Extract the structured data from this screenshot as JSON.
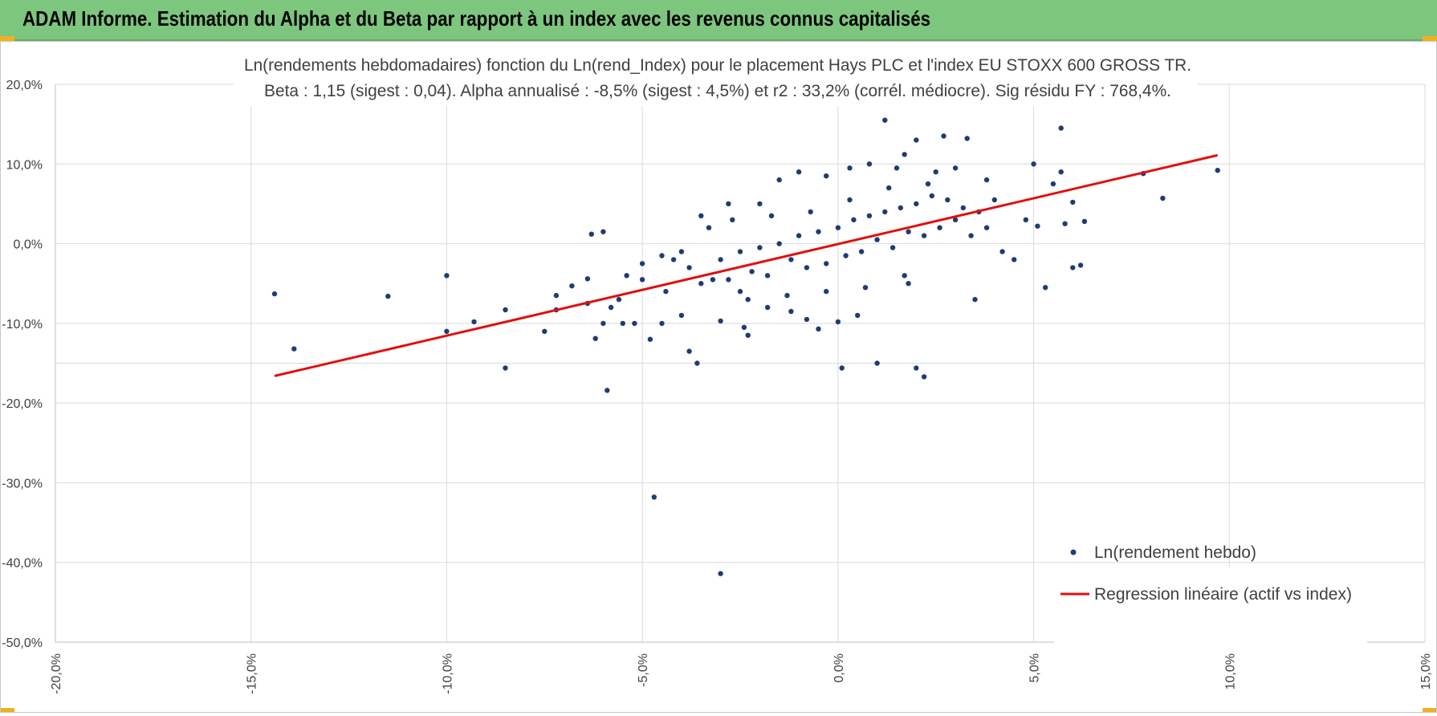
{
  "header": {
    "title": "ADAM Informe. Estimation du Alpha et du Beta par rapport à un index avec les revenus connus capitalisés"
  },
  "colors": {
    "header_bg": "#7dc67e",
    "accent": "#f2b01e",
    "points": "#1f3c72",
    "regression": "#e01010",
    "grid": "#d9d9d9"
  },
  "chart_data": {
    "type": "scatter",
    "title": "Ln(rendements hebdomadaires) fonction du Ln(rend_Index) pour le placement Hays PLC et l'index EU STOXX 600 GROSS TR.",
    "subtitle": "Beta : 1,15 (sigest : 0,04). Alpha annualisé : -8,5% (sigest : 4,5%) et r2 : 33,2% (corrél. médiocre). Sig résidu FY : 768,4%.",
    "xlabel": "",
    "ylabel": "",
    "xlim": [
      -0.2,
      0.15
    ],
    "ylim": [
      -0.5,
      0.2
    ],
    "x_ticks": [
      -0.2,
      -0.15,
      -0.1,
      -0.05,
      0.0,
      0.05,
      0.1,
      0.15
    ],
    "x_tick_labels": [
      "-20,0%",
      "-15,0%",
      "-10,0%",
      "-5,0%",
      "0,0%",
      "5,0%",
      "10,0%",
      "15,0%"
    ],
    "y_ticks": [
      0.2,
      0.1,
      0.0,
      -0.1,
      -0.2,
      -0.3,
      -0.4,
      -0.5
    ],
    "y_tick_labels": [
      "20,0%",
      "10,0%",
      "0,0%",
      "-10,0%",
      "-20,0%",
      "-30,0%",
      "-40,0%",
      "-50,0%"
    ],
    "grid": true,
    "legend_position": "bottom-right",
    "series": [
      {
        "name": "Ln(rendement hebdo)",
        "type": "scatter",
        "color": "#1f3c72",
        "points": [
          [
            -0.144,
            -0.063
          ],
          [
            -0.139,
            -0.132
          ],
          [
            -0.115,
            -0.066
          ],
          [
            -0.1,
            -0.04
          ],
          [
            -0.1,
            -0.11
          ],
          [
            -0.093,
            -0.098
          ],
          [
            -0.085,
            -0.083
          ],
          [
            -0.085,
            -0.156
          ],
          [
            -0.075,
            -0.11
          ],
          [
            -0.072,
            -0.083
          ],
          [
            -0.072,
            -0.065
          ],
          [
            -0.068,
            -0.053
          ],
          [
            -0.064,
            -0.044
          ],
          [
            -0.064,
            -0.075
          ],
          [
            -0.063,
            0.012
          ],
          [
            -0.062,
            -0.119
          ],
          [
            -0.06,
            0.015
          ],
          [
            -0.06,
            -0.1
          ],
          [
            -0.059,
            -0.184
          ],
          [
            -0.058,
            -0.08
          ],
          [
            -0.056,
            -0.07
          ],
          [
            -0.055,
            -0.1
          ],
          [
            -0.054,
            -0.04
          ],
          [
            -0.052,
            -0.1
          ],
          [
            -0.05,
            -0.025
          ],
          [
            -0.048,
            -0.12
          ],
          [
            -0.047,
            -0.318
          ],
          [
            -0.045,
            -0.1
          ],
          [
            -0.044,
            -0.06
          ],
          [
            -0.042,
            -0.02
          ],
          [
            -0.04,
            -0.09
          ],
          [
            -0.038,
            -0.135
          ],
          [
            -0.036,
            -0.15
          ],
          [
            -0.035,
            0.035
          ],
          [
            -0.032,
            -0.045
          ],
          [
            -0.03,
            -0.414
          ],
          [
            -0.03,
            -0.097
          ],
          [
            -0.028,
            0.05
          ],
          [
            -0.025,
            -0.06
          ],
          [
            -0.024,
            -0.105
          ],
          [
            -0.023,
            -0.115
          ],
          [
            -0.02,
            0.05
          ],
          [
            -0.018,
            -0.08
          ],
          [
            -0.015,
            0.08
          ],
          [
            -0.012,
            -0.085
          ],
          [
            -0.01,
            0.09
          ],
          [
            -0.008,
            -0.095
          ],
          [
            -0.005,
            -0.107
          ],
          [
            -0.003,
            0.085
          ],
          [
            0.0,
            -0.098
          ],
          [
            0.001,
            -0.156
          ],
          [
            0.003,
            0.095
          ],
          [
            0.005,
            -0.09
          ],
          [
            0.008,
            0.1
          ],
          [
            0.01,
            -0.15
          ],
          [
            0.012,
            0.155
          ],
          [
            0.015,
            0.095
          ],
          [
            0.017,
            0.112
          ],
          [
            0.018,
            -0.05
          ],
          [
            0.02,
            0.13
          ],
          [
            0.02,
            -0.156
          ],
          [
            0.022,
            -0.167
          ],
          [
            0.025,
            0.09
          ],
          [
            0.027,
            0.135
          ],
          [
            0.03,
            0.095
          ],
          [
            0.033,
            0.132
          ],
          [
            0.035,
            -0.07
          ],
          [
            0.038,
            0.08
          ],
          [
            0.04,
            0.055
          ],
          [
            0.042,
            -0.01
          ],
          [
            0.045,
            -0.02
          ],
          [
            0.048,
            0.03
          ],
          [
            0.05,
            0.1
          ],
          [
            0.051,
            0.022
          ],
          [
            0.053,
            -0.055
          ],
          [
            0.055,
            0.075
          ],
          [
            0.057,
            0.09
          ],
          [
            0.058,
            0.025
          ],
          [
            0.06,
            -0.03
          ],
          [
            0.057,
            0.145
          ],
          [
            0.06,
            0.052
          ],
          [
            0.062,
            -0.027
          ],
          [
            0.063,
            0.028
          ],
          [
            0.078,
            0.088
          ],
          [
            0.083,
            0.057
          ],
          [
            0.097,
            0.092
          ],
          [
            -0.04,
            -0.01
          ],
          [
            -0.038,
            -0.03
          ],
          [
            -0.035,
            -0.05
          ],
          [
            -0.03,
            -0.02
          ],
          [
            -0.028,
            -0.045
          ],
          [
            -0.025,
            -0.01
          ],
          [
            -0.022,
            -0.035
          ],
          [
            -0.02,
            -0.005
          ],
          [
            -0.018,
            -0.04
          ],
          [
            -0.015,
            0.0
          ],
          [
            -0.012,
            -0.02
          ],
          [
            -0.01,
            0.01
          ],
          [
            -0.008,
            -0.03
          ],
          [
            -0.005,
            0.015
          ],
          [
            -0.003,
            -0.025
          ],
          [
            0.0,
            0.02
          ],
          [
            0.002,
            -0.015
          ],
          [
            0.004,
            0.03
          ],
          [
            0.006,
            -0.01
          ],
          [
            0.008,
            0.035
          ],
          [
            0.01,
            0.005
          ],
          [
            0.012,
            0.04
          ],
          [
            0.014,
            -0.005
          ],
          [
            0.016,
            0.045
          ],
          [
            0.018,
            0.015
          ],
          [
            0.02,
            0.05
          ],
          [
            0.022,
            0.01
          ],
          [
            0.024,
            0.06
          ],
          [
            0.026,
            0.02
          ],
          [
            0.028,
            0.055
          ],
          [
            0.03,
            0.03
          ],
          [
            0.032,
            0.045
          ],
          [
            0.034,
            0.01
          ],
          [
            0.036,
            0.04
          ],
          [
            0.038,
            0.02
          ],
          [
            -0.045,
            -0.015
          ],
          [
            -0.05,
            -0.045
          ],
          [
            -0.033,
            0.02
          ],
          [
            -0.027,
            0.03
          ],
          [
            -0.017,
            0.035
          ],
          [
            -0.007,
            0.04
          ],
          [
            0.003,
            0.055
          ],
          [
            0.013,
            0.07
          ],
          [
            0.023,
            0.075
          ],
          [
            -0.023,
            -0.07
          ],
          [
            -0.013,
            -0.065
          ],
          [
            -0.003,
            -0.06
          ],
          [
            0.007,
            -0.055
          ],
          [
            0.017,
            -0.04
          ]
        ]
      },
      {
        "name": "Regression linéaire (actif vs index)",
        "type": "line",
        "color": "#e01010",
        "points": [
          [
            -0.144,
            -0.166
          ],
          [
            0.097,
            0.111
          ]
        ]
      }
    ]
  }
}
